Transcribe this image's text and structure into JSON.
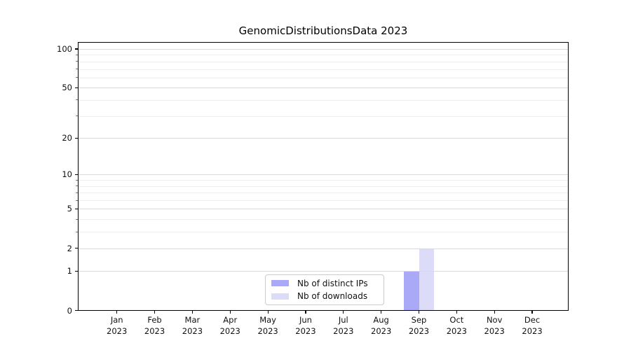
{
  "chart_data": {
    "type": "bar",
    "title": "GenomicDistributionsData 2023",
    "x": [
      "Jan 2023",
      "Feb 2023",
      "Mar 2023",
      "Apr 2023",
      "May 2023",
      "Jun 2023",
      "Jul 2023",
      "Aug 2023",
      "Sep 2023",
      "Oct 2023",
      "Nov 2023",
      "Dec 2023"
    ],
    "x_tick_months": [
      "Jan",
      "Feb",
      "Mar",
      "Apr",
      "May",
      "Jun",
      "Jul",
      "Aug",
      "Sep",
      "Oct",
      "Nov",
      "Dec"
    ],
    "x_tick_year": "2023",
    "series": [
      {
        "name": "Nb of distinct IPs",
        "color": "#a9a9f8",
        "values": [
          0,
          0,
          0,
          0,
          0,
          0,
          0,
          0,
          1,
          0,
          0,
          0
        ]
      },
      {
        "name": "Nb of downloads",
        "color": "#dcdcf9",
        "values": [
          0,
          0,
          0,
          0,
          0,
          0,
          0,
          0,
          2,
          0,
          0,
          0
        ]
      }
    ],
    "yscale": "log1p",
    "ylim": [
      0,
      113
    ],
    "y_major_ticks": [
      0,
      1,
      2,
      5,
      10,
      20,
      50,
      100
    ],
    "y_minor_ticks": [
      3,
      4,
      6,
      7,
      8,
      9,
      30,
      40,
      60,
      70,
      80,
      90
    ],
    "grid": true,
    "legend_position": "lower center",
    "colors": {
      "axis": "#000000",
      "grid_major": "#d9d9d9",
      "grid_minor": "#ededed",
      "tick_label": "#111111"
    }
  }
}
